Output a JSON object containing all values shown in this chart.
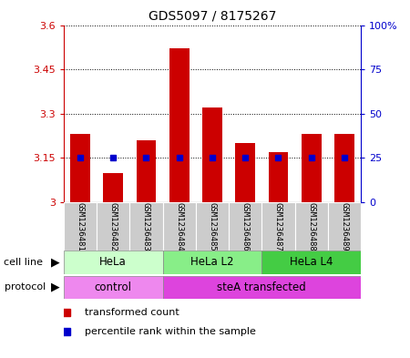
{
  "title": "GDS5097 / 8175267",
  "samples": [
    "GSM1236481",
    "GSM1236482",
    "GSM1236483",
    "GSM1236484",
    "GSM1236485",
    "GSM1236486",
    "GSM1236487",
    "GSM1236488",
    "GSM1236489"
  ],
  "bar_values": [
    3.23,
    3.1,
    3.21,
    3.52,
    3.32,
    3.2,
    3.17,
    3.23,
    3.23
  ],
  "blue_values": [
    25,
    25,
    25,
    25,
    25,
    25,
    25,
    25,
    25
  ],
  "ymin": 3.0,
  "ymax": 3.6,
  "yticks": [
    3.0,
    3.15,
    3.3,
    3.45,
    3.6
  ],
  "ytick_labels": [
    "3",
    "3.15",
    "3.3",
    "3.45",
    "3.6"
  ],
  "y2min": 0,
  "y2max": 100,
  "y2ticks": [
    0,
    25,
    50,
    75,
    100
  ],
  "y2tick_labels": [
    "0",
    "25",
    "50",
    "75",
    "100%"
  ],
  "bar_color": "#cc0000",
  "blue_color": "#0000cc",
  "bar_width": 0.6,
  "cell_line_groups": [
    {
      "label": "HeLa",
      "start": 0,
      "end": 3,
      "color": "#ccffcc"
    },
    {
      "label": "HeLa L2",
      "start": 3,
      "end": 6,
      "color": "#88ee88"
    },
    {
      "label": "HeLa L4",
      "start": 6,
      "end": 9,
      "color": "#44cc44"
    }
  ],
  "protocol_groups": [
    {
      "label": "control",
      "start": 0,
      "end": 3,
      "color": "#ee88ee"
    },
    {
      "label": "steA transfected",
      "start": 3,
      "end": 9,
      "color": "#dd44dd"
    }
  ],
  "left_label_color": "#cc0000",
  "right_label_color": "#0000cc",
  "grid_color": "#000000",
  "bg_color": "#ffffff",
  "sample_bg": "#cccccc"
}
